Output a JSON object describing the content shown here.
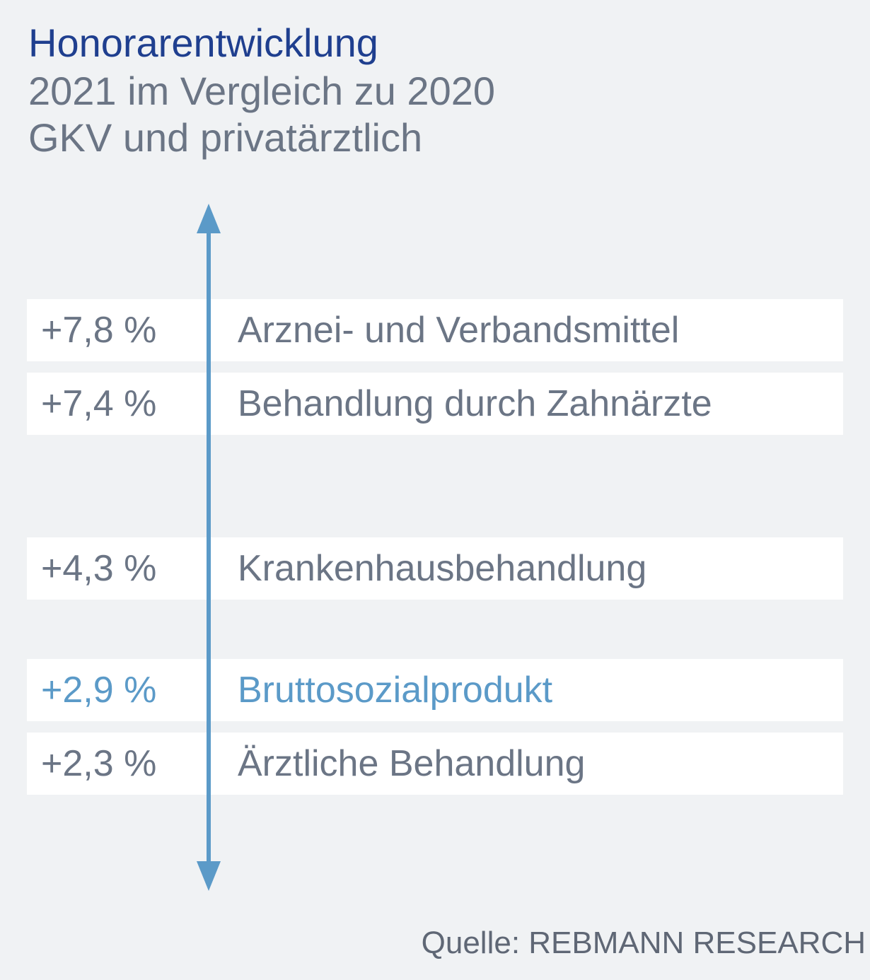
{
  "header": {
    "title": "Honorarentwicklung",
    "subtitle_1": "2021 im Vergleich zu 2020",
    "subtitle_2": "GKV und privatärztlich"
  },
  "colors": {
    "title": "#1f3f8f",
    "text": "#6b7585",
    "accent": "#5b9ac8",
    "row_bg": "#ffffff",
    "page_bg": "#f0f2f4"
  },
  "chart_data": {
    "type": "table",
    "rows": [
      {
        "value": "+7,8 %",
        "label": "Arznei- und Verbandsmittel",
        "highlight": false
      },
      {
        "value": "+7,4 %",
        "label": "Behandlung durch Zahnärzte",
        "highlight": false
      },
      {
        "value": "+4,3 %",
        "label": "Krankenhausbehandlung",
        "highlight": false
      },
      {
        "value": "+2,9 %",
        "label": "Bruttosozialprodukt",
        "highlight": true
      },
      {
        "value": "+2,3 %",
        "label": "Ärztliche Behandlung",
        "highlight": false
      }
    ],
    "values": [
      7.8,
      7.4,
      4.3,
      2.9,
      2.3
    ]
  },
  "footer": {
    "source": "Quelle: REBMANN RESEARCH"
  }
}
